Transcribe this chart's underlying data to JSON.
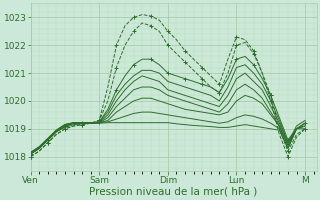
{
  "background_color": "#cce8d8",
  "plot_bg_color": "#cce8d8",
  "grid_major_color": "#aaccaa",
  "grid_minor_color": "#bbddbb",
  "line_color": "#2d6e2d",
  "ylim": [
    1017.5,
    1023.5
  ],
  "yticks": [
    1018,
    1019,
    1020,
    1021,
    1022,
    1023
  ],
  "xlabel": "Pression niveau de la mer( hPa )",
  "xlabel_fontsize": 7.5,
  "tick_fontsize": 6.5,
  "day_labels": [
    "Ven",
    "Sam",
    "Dim",
    "Lun",
    "M"
  ],
  "day_positions": [
    0,
    24,
    48,
    72,
    96
  ],
  "total_hours": 100,
  "series": [
    {
      "x": [
        0,
        3,
        6,
        9,
        12,
        15,
        18,
        21,
        24,
        27,
        30,
        33,
        36,
        39,
        42,
        45,
        48,
        51,
        54,
        57,
        60,
        63,
        66,
        69,
        72,
        75,
        78,
        81,
        84,
        87,
        90,
        93,
        96
      ],
      "y": [
        1018.0,
        1018.2,
        1018.5,
        1018.8,
        1019.0,
        1019.1,
        1019.15,
        1019.2,
        1019.3,
        1020.5,
        1022.0,
        1022.7,
        1023.0,
        1023.1,
        1023.05,
        1022.9,
        1022.5,
        1022.2,
        1021.8,
        1021.5,
        1021.2,
        1020.9,
        1020.6,
        1021.5,
        1022.3,
        1022.2,
        1021.8,
        1021.0,
        1020.2,
        1019.0,
        1018.2,
        1018.8,
        1019.0
      ],
      "style": "--",
      "marker": "+"
    },
    {
      "x": [
        0,
        3,
        6,
        9,
        12,
        15,
        18,
        21,
        24,
        27,
        30,
        33,
        36,
        39,
        42,
        45,
        48,
        51,
        54,
        57,
        60,
        63,
        66,
        69,
        72,
        75,
        78,
        81,
        84,
        87,
        90,
        93,
        96
      ],
      "y": [
        1018.0,
        1018.2,
        1018.5,
        1018.8,
        1019.0,
        1019.1,
        1019.15,
        1019.2,
        1019.3,
        1020.0,
        1021.2,
        1022.0,
        1022.5,
        1022.8,
        1022.7,
        1022.5,
        1022.0,
        1021.7,
        1021.4,
        1021.1,
        1020.8,
        1020.5,
        1020.3,
        1021.0,
        1022.0,
        1022.1,
        1021.7,
        1021.0,
        1020.0,
        1018.8,
        1018.0,
        1018.7,
        1019.0
      ],
      "style": "--",
      "marker": "+"
    },
    {
      "x": [
        0,
        3,
        6,
        9,
        12,
        15,
        18,
        21,
        24,
        27,
        30,
        33,
        36,
        39,
        42,
        45,
        48,
        51,
        54,
        57,
        60,
        63,
        66,
        69,
        72,
        75,
        78,
        81,
        84,
        87,
        90,
        93,
        96
      ],
      "y": [
        1018.1,
        1018.3,
        1018.6,
        1018.9,
        1019.1,
        1019.2,
        1019.2,
        1019.2,
        1019.25,
        1019.7,
        1020.4,
        1020.9,
        1021.3,
        1021.5,
        1021.5,
        1021.3,
        1021.0,
        1020.9,
        1020.8,
        1020.7,
        1020.6,
        1020.5,
        1020.3,
        1020.8,
        1021.5,
        1021.6,
        1021.3,
        1020.8,
        1020.2,
        1019.4,
        1018.6,
        1019.0,
        1019.2
      ],
      "style": "-",
      "marker": "+"
    },
    {
      "x": [
        0,
        3,
        6,
        9,
        12,
        15,
        18,
        21,
        24,
        27,
        30,
        33,
        36,
        39,
        42,
        45,
        48,
        51,
        54,
        57,
        60,
        63,
        66,
        69,
        72,
        75,
        78,
        81,
        84,
        87,
        90,
        93,
        96
      ],
      "y": [
        1018.1,
        1018.3,
        1018.6,
        1018.9,
        1019.1,
        1019.2,
        1019.2,
        1019.2,
        1019.25,
        1019.6,
        1020.2,
        1020.6,
        1020.9,
        1021.1,
        1021.1,
        1021.0,
        1020.7,
        1020.6,
        1020.5,
        1020.4,
        1020.3,
        1020.2,
        1020.0,
        1020.5,
        1021.2,
        1021.3,
        1021.0,
        1020.6,
        1020.0,
        1019.3,
        1018.5,
        1019.1,
        1019.3
      ],
      "style": "-",
      "marker": null
    },
    {
      "x": [
        0,
        3,
        6,
        9,
        12,
        15,
        18,
        21,
        24,
        27,
        30,
        33,
        36,
        39,
        42,
        45,
        48,
        51,
        54,
        57,
        60,
        63,
        66,
        69,
        72,
        75,
        78,
        81,
        84,
        87,
        90,
        93,
        96
      ],
      "y": [
        1018.1,
        1018.3,
        1018.6,
        1018.9,
        1019.1,
        1019.2,
        1019.2,
        1019.2,
        1019.22,
        1019.5,
        1020.0,
        1020.4,
        1020.7,
        1020.9,
        1020.8,
        1020.7,
        1020.4,
        1020.3,
        1020.2,
        1020.1,
        1020.0,
        1019.9,
        1019.8,
        1020.2,
        1020.8,
        1021.0,
        1020.7,
        1020.4,
        1019.8,
        1019.2,
        1018.5,
        1019.0,
        1019.2
      ],
      "style": "-",
      "marker": null
    },
    {
      "x": [
        0,
        3,
        6,
        9,
        12,
        15,
        18,
        21,
        24,
        27,
        30,
        33,
        36,
        39,
        42,
        45,
        48,
        51,
        54,
        57,
        60,
        63,
        66,
        69,
        72,
        75,
        78,
        81,
        84,
        87,
        90,
        93,
        96
      ],
      "y": [
        1018.15,
        1018.35,
        1018.65,
        1018.95,
        1019.15,
        1019.22,
        1019.22,
        1019.22,
        1019.22,
        1019.4,
        1019.8,
        1020.1,
        1020.4,
        1020.5,
        1020.5,
        1020.4,
        1020.2,
        1020.1,
        1020.0,
        1019.9,
        1019.8,
        1019.7,
        1019.6,
        1019.9,
        1020.4,
        1020.6,
        1020.4,
        1020.1,
        1019.6,
        1019.1,
        1018.4,
        1019.0,
        1019.2
      ],
      "style": "-",
      "marker": null
    },
    {
      "x": [
        0,
        3,
        6,
        9,
        12,
        15,
        18,
        21,
        24,
        27,
        30,
        33,
        36,
        39,
        42,
        45,
        48,
        51,
        54,
        57,
        60,
        63,
        66,
        69,
        72,
        75,
        78,
        81,
        84,
        87,
        90,
        93,
        96
      ],
      "y": [
        1018.15,
        1018.35,
        1018.65,
        1018.95,
        1019.15,
        1019.22,
        1019.22,
        1019.22,
        1019.22,
        1019.3,
        1019.6,
        1019.8,
        1020.0,
        1020.1,
        1020.1,
        1020.0,
        1019.9,
        1019.8,
        1019.7,
        1019.65,
        1019.6,
        1019.55,
        1019.5,
        1019.6,
        1020.0,
        1020.2,
        1020.1,
        1019.9,
        1019.5,
        1019.1,
        1018.4,
        1019.0,
        1019.1
      ],
      "style": "-",
      "marker": null
    },
    {
      "x": [
        0,
        3,
        6,
        9,
        12,
        15,
        18,
        21,
        24,
        27,
        30,
        33,
        36,
        39,
        42,
        45,
        48,
        51,
        54,
        57,
        60,
        63,
        66,
        69,
        72,
        75,
        78,
        81,
        84,
        87,
        90,
        93,
        96
      ],
      "y": [
        1018.15,
        1018.35,
        1018.65,
        1018.95,
        1019.15,
        1019.22,
        1019.22,
        1019.22,
        1019.22,
        1019.25,
        1019.35,
        1019.45,
        1019.55,
        1019.6,
        1019.6,
        1019.55,
        1019.5,
        1019.45,
        1019.4,
        1019.35,
        1019.3,
        1019.25,
        1019.2,
        1019.25,
        1019.4,
        1019.5,
        1019.45,
        1019.35,
        1019.2,
        1019.0,
        1018.3,
        1019.0,
        1019.1
      ],
      "style": "-",
      "marker": null
    },
    {
      "x": [
        0,
        3,
        6,
        9,
        12,
        15,
        18,
        21,
        24,
        27,
        30,
        33,
        36,
        39,
        42,
        45,
        48,
        51,
        54,
        57,
        60,
        63,
        66,
        69,
        72,
        75,
        78,
        81,
        84,
        87,
        90,
        93,
        96
      ],
      "y": [
        1018.1,
        1018.3,
        1018.6,
        1018.9,
        1019.05,
        1019.15,
        1019.18,
        1019.2,
        1019.2,
        1019.22,
        1019.22,
        1019.22,
        1019.22,
        1019.22,
        1019.22,
        1019.22,
        1019.22,
        1019.18,
        1019.15,
        1019.12,
        1019.1,
        1019.08,
        1019.05,
        1019.05,
        1019.1,
        1019.15,
        1019.1,
        1019.05,
        1019.0,
        1018.95,
        1018.3,
        1019.0,
        1019.0
      ],
      "style": "-",
      "marker": null
    }
  ]
}
